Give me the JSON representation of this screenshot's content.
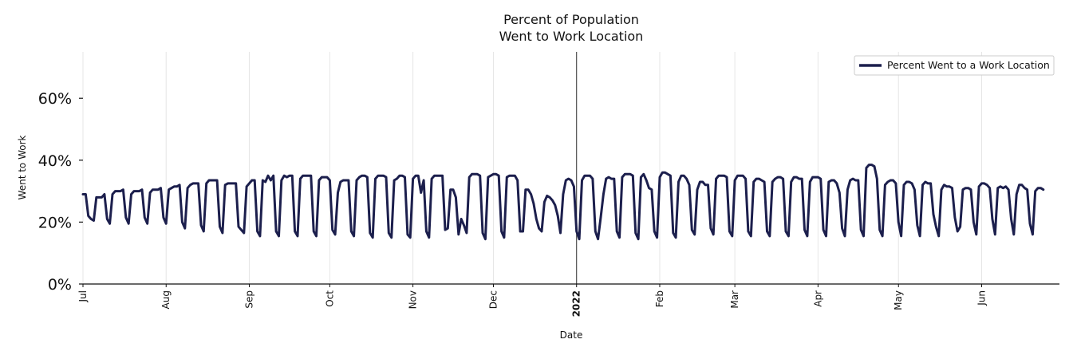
{
  "chart_data": {
    "type": "line",
    "title": [
      "Percent of Population",
      "Went to Work Location"
    ],
    "xlabel": "Date",
    "ylabel": "Went to Work",
    "ylim": [
      0,
      75
    ],
    "yticks": [
      0,
      20,
      40,
      60
    ],
    "ytick_labels": [
      "0%",
      "20%",
      "40%",
      "60%"
    ],
    "xlim_days": [
      0,
      364
    ],
    "xticks": [
      {
        "day": 0,
        "label": "Jul",
        "bold": false
      },
      {
        "day": 31,
        "label": "Aug",
        "bold": false
      },
      {
        "day": 62,
        "label": "Sep",
        "bold": false
      },
      {
        "day": 92,
        "label": "Oct",
        "bold": false
      },
      {
        "day": 123,
        "label": "Nov",
        "bold": false
      },
      {
        "day": 153,
        "label": "Dec",
        "bold": false
      },
      {
        "day": 184,
        "label": "2022",
        "bold": true
      },
      {
        "day": 215,
        "label": "Feb",
        "bold": false
      },
      {
        "day": 243,
        "label": "Mar",
        "bold": false
      },
      {
        "day": 274,
        "label": "Apr",
        "bold": false
      },
      {
        "day": 304,
        "label": "May",
        "bold": false
      },
      {
        "day": 335,
        "label": "Jun",
        "bold": false
      }
    ],
    "grid": "vertical",
    "year_divider_day": 184,
    "legend": {
      "position": "top-right",
      "entries": [
        "Percent Went to a Work Location"
      ]
    },
    "series": [
      {
        "name": "Percent Went to a Work Location",
        "color": "#1c1f4d",
        "start_day": 0,
        "values": [
          29,
          29,
          22,
          21,
          20.5,
          28,
          28,
          28,
          29,
          21,
          19.5,
          29,
          30,
          30,
          30,
          30.5,
          21.5,
          19.5,
          29,
          30,
          30,
          30,
          30.5,
          21.5,
          19.5,
          29.5,
          30.5,
          30.5,
          30.5,
          31,
          21.5,
          19.5,
          30.5,
          31,
          31.5,
          31.5,
          32,
          20,
          18,
          31,
          32,
          32.5,
          32.5,
          32.5,
          19,
          17,
          32.5,
          33.5,
          33.5,
          33.5,
          33.5,
          18.5,
          16.5,
          32,
          32.5,
          32.5,
          32.5,
          32.5,
          18.5,
          17.5,
          16.5,
          31.5,
          32.5,
          33.5,
          33.5,
          17,
          15.5,
          33.5,
          33,
          35,
          33.5,
          35,
          17,
          15.5,
          33.5,
          35,
          34.5,
          35,
          35,
          17,
          15.5,
          34,
          35,
          35,
          35,
          35,
          17,
          15.5,
          33.5,
          34.5,
          34.5,
          34.5,
          33.5,
          17.5,
          16,
          29.5,
          33,
          33.5,
          33.5,
          33.5,
          17,
          15.5,
          33.5,
          34.5,
          35,
          35,
          34.5,
          16.5,
          15,
          34,
          35,
          35,
          35,
          34.5,
          16.5,
          15,
          33.5,
          34,
          35,
          35,
          34.5,
          16,
          15,
          34,
          35,
          35,
          29.5,
          33.5,
          17,
          15,
          34,
          35,
          35,
          35,
          35,
          17.5,
          18,
          30.5,
          30.5,
          28,
          16,
          21,
          19,
          16.5,
          34.5,
          35.5,
          35.5,
          35.5,
          35,
          16.5,
          14.5,
          34.5,
          35,
          35.5,
          35.5,
          35,
          17,
          15,
          34.5,
          35,
          35,
          35,
          33.5,
          17,
          17,
          30.5,
          30.5,
          29,
          26,
          21,
          18,
          17,
          26.5,
          28.5,
          28,
          27,
          25.5,
          22,
          16.5,
          29,
          33.5,
          34,
          33.5,
          31.5,
          17,
          14.5,
          33.5,
          35,
          35,
          35,
          34,
          17,
          14.5,
          21.5,
          29,
          34,
          34.5,
          34,
          34,
          17,
          15,
          34.5,
          35.5,
          35.5,
          35.5,
          35,
          16.5,
          14.5,
          34.5,
          35.5,
          33.5,
          31,
          30.5,
          17,
          15,
          34.5,
          36,
          36,
          35.5,
          35,
          16.5,
          15,
          33,
          35,
          35,
          34,
          32,
          17.5,
          16,
          30.5,
          33,
          33,
          32,
          32,
          18,
          16,
          34,
          35,
          35,
          35,
          34.5,
          17,
          15.5,
          33.5,
          35,
          35,
          35,
          34,
          17,
          15.5,
          33,
          34,
          34,
          33.5,
          33,
          17,
          15.5,
          33,
          34,
          34.5,
          34.5,
          34,
          17,
          15.5,
          33,
          34.5,
          34.5,
          34,
          34,
          17.5,
          15.5,
          33,
          34.5,
          34.5,
          34.5,
          34,
          17.5,
          15.5,
          33,
          33.5,
          33.5,
          32.5,
          29.5,
          18,
          15.5,
          30.5,
          33.5,
          34,
          33.5,
          33.5,
          17.5,
          15.5,
          37.5,
          38.5,
          38.5,
          38,
          34,
          17.5,
          15.5,
          32,
          33,
          33.5,
          33.5,
          32.5,
          20,
          15.5,
          32,
          33,
          33,
          32.5,
          30.5,
          19,
          15.5,
          32,
          33,
          32.5,
          32.5,
          22.5,
          18.5,
          15.5,
          30.5,
          32,
          31.5,
          31.5,
          31,
          21.5,
          17,
          18.5,
          30.5,
          31,
          31,
          30.5,
          20,
          16,
          31.5,
          32.5,
          32.5,
          32,
          31,
          21,
          16,
          31,
          31.5,
          31,
          31.5,
          30.5,
          21,
          16,
          29,
          32,
          32,
          31,
          30.5,
          19.5,
          16,
          30,
          31,
          31,
          30.5
        ]
      }
    ]
  }
}
